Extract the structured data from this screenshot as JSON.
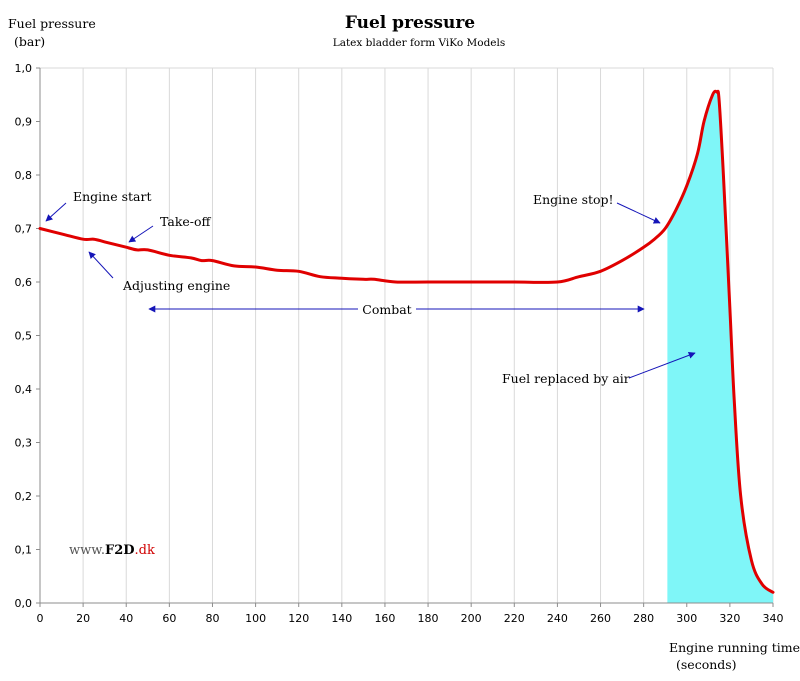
{
  "chart_data": {
    "type": "line",
    "title": "Fuel pressure",
    "subtitle": "Latex bladder form ViKo Models",
    "ylabel_line1": "Fuel pressure",
    "ylabel_line2": "(bar)",
    "xlabel_line1": "Engine running time",
    "xlabel_line2": "(seconds)",
    "xlim": [
      0,
      340
    ],
    "ylim": [
      0,
      1.0
    ],
    "x_ticks": [
      0,
      20,
      40,
      60,
      80,
      100,
      120,
      140,
      160,
      180,
      200,
      220,
      240,
      260,
      280,
      300,
      320,
      340
    ],
    "y_ticks": [
      0,
      0.1,
      0.2,
      0.3,
      0.4,
      0.5,
      0.6,
      0.7,
      0.8,
      0.9,
      1.0
    ],
    "y_tick_labels": [
      "0,0",
      "0,1",
      "0,2",
      "0,3",
      "0,4",
      "0,5",
      "0,6",
      "0,7",
      "0,8",
      "0,9",
      "1,0"
    ],
    "grid": "vertical",
    "series": [
      {
        "color": "#e00000",
        "x": [
          0,
          10,
          20,
          25,
          30,
          40,
          45,
          50,
          60,
          70,
          75,
          80,
          90,
          100,
          110,
          120,
          130,
          140,
          150,
          155,
          165,
          180,
          200,
          220,
          240,
          250,
          260,
          270,
          280,
          285,
          290,
          295,
          300,
          305,
          308,
          312,
          314,
          315,
          317,
          320,
          322,
          325,
          330,
          335,
          340
        ],
        "y": [
          0.7,
          0.69,
          0.68,
          0.68,
          0.675,
          0.665,
          0.66,
          0.66,
          0.65,
          0.645,
          0.64,
          0.64,
          0.63,
          0.628,
          0.622,
          0.62,
          0.61,
          0.607,
          0.605,
          0.605,
          0.6,
          0.6,
          0.6,
          0.6,
          0.6,
          0.61,
          0.62,
          0.64,
          0.665,
          0.68,
          0.7,
          0.735,
          0.78,
          0.84,
          0.9,
          0.95,
          0.955,
          0.94,
          0.8,
          0.55,
          0.38,
          0.2,
          0.08,
          0.035,
          0.02
        ]
      }
    ],
    "shaded_region": {
      "label": "Fuel replaced by air",
      "x_start": 291,
      "color": "#7ff6f8"
    },
    "annotations": {
      "engine_start": "Engine start",
      "take_off": "Take-off",
      "adjusting_engine": "Adjusting engine",
      "combat": "Combat",
      "engine_stop": "Engine stop!",
      "fuel_replaced": "Fuel replaced by air"
    },
    "watermark": {
      "prefix": "www.",
      "brand": "F2D",
      "suffix": ".dk",
      "brand_color": "#000000",
      "suffix_color": "#d00000"
    },
    "annotation_color": "#1515b8"
  }
}
